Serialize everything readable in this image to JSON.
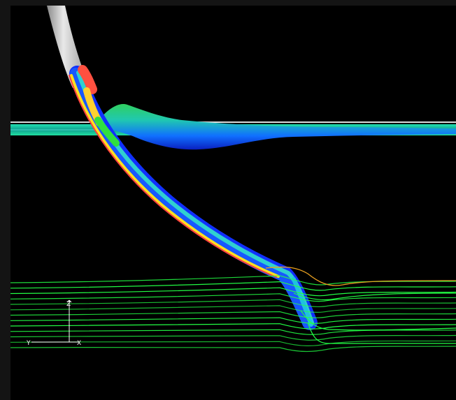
{
  "viewport": {
    "background": "#000000",
    "frame_color": "#141414"
  },
  "axis_triad": {
    "labels": {
      "vertical": "Z",
      "left": "Y",
      "right": "X"
    },
    "color": "#ffffff"
  },
  "colors": {
    "pipe": "#cfcfcf",
    "streamline_green": "#22ff44",
    "streamline_orange": "#e8a020",
    "contour_red": "#ff3030",
    "contour_yellow": "#ffe020",
    "contour_green": "#30e040",
    "contour_cyan": "#20d0d0",
    "contour_blue": "#1030ff"
  },
  "streamline_count": 13
}
